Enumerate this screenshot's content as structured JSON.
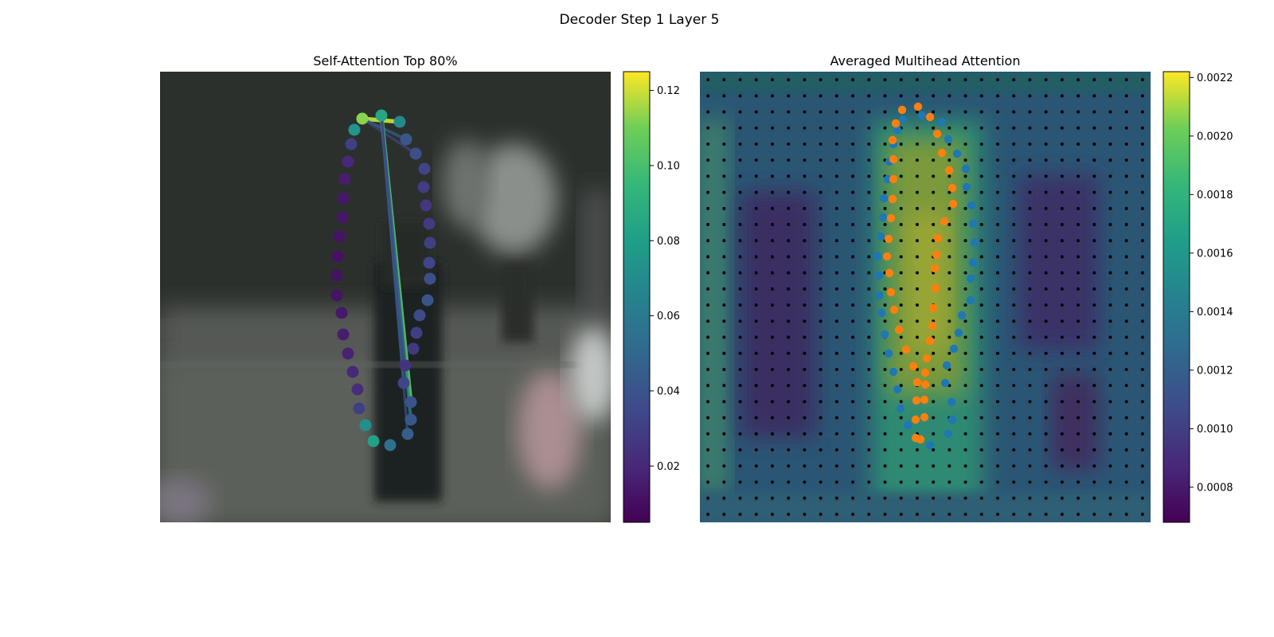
{
  "figure": {
    "title": "Decoder Step 1 Layer 5"
  },
  "chart_data": [
    {
      "type": "scatter",
      "title": "Self-Attention Top 80%",
      "background": "blurred street photo with standing pedestrians",
      "colormap": "viridis",
      "colorbar": {
        "range": [
          0.005,
          0.125
        ],
        "ticks": [
          "0.02",
          "0.04",
          "0.06",
          "0.08",
          "0.10",
          "0.12"
        ]
      },
      "points": [
        {
          "x": 455,
          "y": 149,
          "v": 0.113
        },
        {
          "x": 479,
          "y": 145,
          "v": 0.085
        },
        {
          "x": 502,
          "y": 153,
          "v": 0.068
        },
        {
          "x": 510,
          "y": 175,
          "v": 0.042
        },
        {
          "x": 522,
          "y": 193,
          "v": 0.038
        },
        {
          "x": 533,
          "y": 212,
          "v": 0.033
        },
        {
          "x": 532,
          "y": 235,
          "v": 0.029
        },
        {
          "x": 535,
          "y": 258,
          "v": 0.026
        },
        {
          "x": 539,
          "y": 281,
          "v": 0.028
        },
        {
          "x": 540,
          "y": 305,
          "v": 0.03
        },
        {
          "x": 539,
          "y": 330,
          "v": 0.033
        },
        {
          "x": 540,
          "y": 350,
          "v": 0.038
        },
        {
          "x": 537,
          "y": 377,
          "v": 0.04
        },
        {
          "x": 527,
          "y": 396,
          "v": 0.035
        },
        {
          "x": 523,
          "y": 418,
          "v": 0.03
        },
        {
          "x": 519,
          "y": 438,
          "v": 0.027
        },
        {
          "x": 509,
          "y": 459,
          "v": 0.025
        },
        {
          "x": 507,
          "y": 481,
          "v": 0.033
        },
        {
          "x": 516,
          "y": 505,
          "v": 0.04
        },
        {
          "x": 516,
          "y": 527,
          "v": 0.042
        },
        {
          "x": 512,
          "y": 545,
          "v": 0.045
        },
        {
          "x": 490,
          "y": 559,
          "v": 0.055
        },
        {
          "x": 469,
          "y": 554,
          "v": 0.082
        },
        {
          "x": 459,
          "y": 534,
          "v": 0.072
        },
        {
          "x": 451,
          "y": 513,
          "v": 0.03
        },
        {
          "x": 449,
          "y": 489,
          "v": 0.022
        },
        {
          "x": 443,
          "y": 467,
          "v": 0.02
        },
        {
          "x": 437,
          "y": 444,
          "v": 0.018
        },
        {
          "x": 431,
          "y": 420,
          "v": 0.016
        },
        {
          "x": 429,
          "y": 393,
          "v": 0.014
        },
        {
          "x": 423,
          "y": 371,
          "v": 0.012
        },
        {
          "x": 423,
          "y": 346,
          "v": 0.011
        },
        {
          "x": 424,
          "y": 322,
          "v": 0.011
        },
        {
          "x": 426,
          "y": 297,
          "v": 0.012
        },
        {
          "x": 430,
          "y": 273,
          "v": 0.013
        },
        {
          "x": 431,
          "y": 249,
          "v": 0.014
        },
        {
          "x": 433,
          "y": 225,
          "v": 0.016
        },
        {
          "x": 437,
          "y": 203,
          "v": 0.02
        },
        {
          "x": 441,
          "y": 181,
          "v": 0.03
        },
        {
          "x": 445,
          "y": 163,
          "v": 0.075
        }
      ],
      "lines": [
        {
          "from": 0,
          "to": 2,
          "v": 0.118
        },
        {
          "from": 0,
          "to": 3,
          "v": 0.048
        },
        {
          "from": 0,
          "to": 4,
          "v": 0.035
        },
        {
          "from": 1,
          "to": 18,
          "v": 0.105
        },
        {
          "from": 1,
          "to": 19,
          "v": 0.065
        },
        {
          "from": 1,
          "to": 17,
          "v": 0.052
        },
        {
          "from": 1,
          "to": 20,
          "v": 0.04
        },
        {
          "from": 1,
          "to": 16,
          "v": 0.03
        }
      ]
    },
    {
      "type": "heatmap",
      "title": "Averaged Multihead Attention",
      "colormap": "viridis",
      "colorbar": {
        "range": [
          0.00068,
          0.00222
        ],
        "ticks": [
          "0.0008",
          "0.0010",
          "0.0012",
          "0.0014",
          "0.0016",
          "0.0018",
          "0.0020",
          "0.0022"
        ]
      },
      "grid_points": {
        "cols": 28,
        "rows": 28,
        "color": "#000000"
      },
      "series": [
        {
          "color": "#1f77b4",
          "points": [
            {
              "x": 1134,
              "y": 150
            },
            {
              "x": 1158,
              "y": 145
            },
            {
              "x": 1183,
              "y": 153
            },
            {
              "x": 1191,
              "y": 175
            },
            {
              "x": 1202,
              "y": 193
            },
            {
              "x": 1213,
              "y": 212
            },
            {
              "x": 1214,
              "y": 235
            },
            {
              "x": 1220,
              "y": 258
            },
            {
              "x": 1222,
              "y": 281
            },
            {
              "x": 1224,
              "y": 305
            },
            {
              "x": 1222,
              "y": 330
            },
            {
              "x": 1219,
              "y": 350
            },
            {
              "x": 1219,
              "y": 377
            },
            {
              "x": 1208,
              "y": 396
            },
            {
              "x": 1204,
              "y": 418
            },
            {
              "x": 1198,
              "y": 438
            },
            {
              "x": 1189,
              "y": 459
            },
            {
              "x": 1187,
              "y": 481
            },
            {
              "x": 1195,
              "y": 505
            },
            {
              "x": 1196,
              "y": 527
            },
            {
              "x": 1191,
              "y": 545
            },
            {
              "x": 1168,
              "y": 559
            },
            {
              "x": 1140,
              "y": 534
            },
            {
              "x": 1131,
              "y": 513
            },
            {
              "x": 1127,
              "y": 489
            },
            {
              "x": 1122,
              "y": 467
            },
            {
              "x": 1116,
              "y": 444
            },
            {
              "x": 1111,
              "y": 420
            },
            {
              "x": 1107,
              "y": 393
            },
            {
              "x": 1104,
              "y": 371
            },
            {
              "x": 1104,
              "y": 346
            },
            {
              "x": 1102,
              "y": 322
            },
            {
              "x": 1106,
              "y": 297
            },
            {
              "x": 1109,
              "y": 273
            },
            {
              "x": 1110,
              "y": 249
            },
            {
              "x": 1115,
              "y": 225
            },
            {
              "x": 1117,
              "y": 203
            },
            {
              "x": 1122,
              "y": 181
            },
            {
              "x": 1127,
              "y": 163
            }
          ]
        },
        {
          "color": "#ff7f0e",
          "points": [
            {
              "x": 1133,
              "y": 138
            },
            {
              "x": 1153,
              "y": 134
            },
            {
              "x": 1168,
              "y": 147
            },
            {
              "x": 1177,
              "y": 168
            },
            {
              "x": 1183,
              "y": 192
            },
            {
              "x": 1192,
              "y": 214
            },
            {
              "x": 1196,
              "y": 236
            },
            {
              "x": 1197,
              "y": 256
            },
            {
              "x": 1186,
              "y": 278
            },
            {
              "x": 1178,
              "y": 299
            },
            {
              "x": 1176,
              "y": 320
            },
            {
              "x": 1174,
              "y": 337
            },
            {
              "x": 1175,
              "y": 362
            },
            {
              "x": 1172,
              "y": 387
            },
            {
              "x": 1171,
              "y": 409
            },
            {
              "x": 1168,
              "y": 428
            },
            {
              "x": 1164,
              "y": 450
            },
            {
              "x": 1162,
              "y": 468
            },
            {
              "x": 1162,
              "y": 483
            },
            {
              "x": 1161,
              "y": 502
            },
            {
              "x": 1161,
              "y": 524
            },
            {
              "x": 1156,
              "y": 552
            },
            {
              "x": 1150,
              "y": 550
            },
            {
              "x": 1150,
              "y": 527
            },
            {
              "x": 1151,
              "y": 503
            },
            {
              "x": 1152,
              "y": 480
            },
            {
              "x": 1147,
              "y": 460
            },
            {
              "x": 1138,
              "y": 439
            },
            {
              "x": 1129,
              "y": 414
            },
            {
              "x": 1123,
              "y": 389
            },
            {
              "x": 1119,
              "y": 367
            },
            {
              "x": 1117,
              "y": 343
            },
            {
              "x": 1114,
              "y": 322
            },
            {
              "x": 1116,
              "y": 300
            },
            {
              "x": 1119,
              "y": 274
            },
            {
              "x": 1121,
              "y": 250
            },
            {
              "x": 1122,
              "y": 225
            },
            {
              "x": 1122,
              "y": 200
            },
            {
              "x": 1121,
              "y": 176
            },
            {
              "x": 1125,
              "y": 155
            }
          ]
        }
      ]
    }
  ]
}
